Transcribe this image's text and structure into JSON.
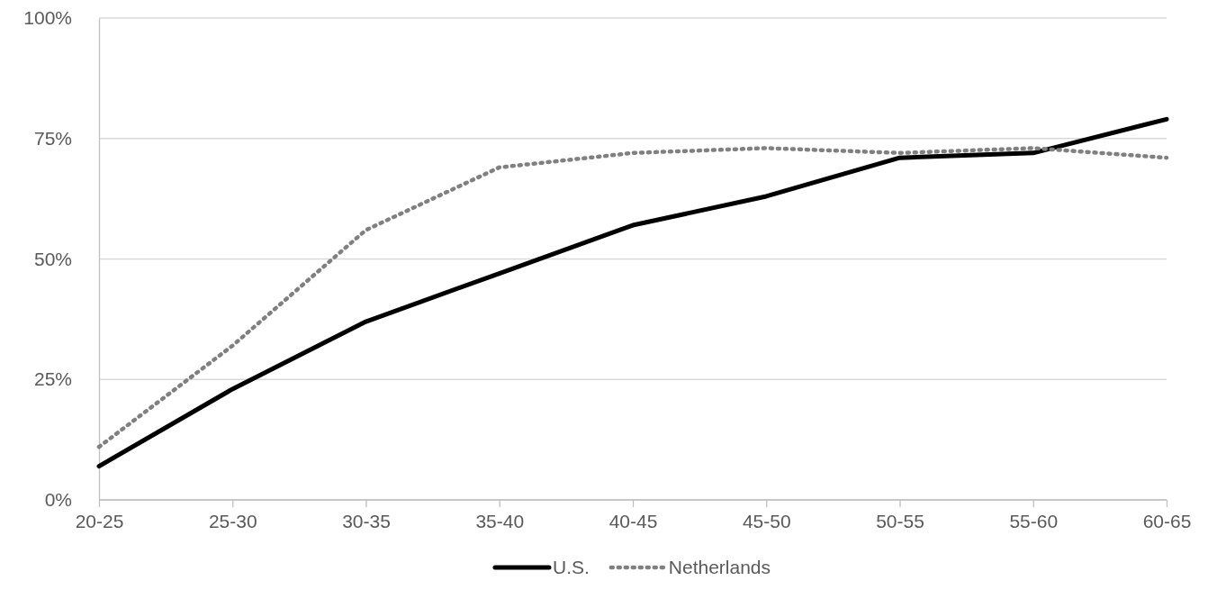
{
  "chart_data": {
    "type": "line",
    "categories": [
      "20-25",
      "25-30",
      "30-35",
      "35-40",
      "40-45",
      "45-50",
      "50-55",
      "55-60",
      "60-65"
    ],
    "series": [
      {
        "name": "U.S.",
        "color": "#000000",
        "line_style": "solid",
        "values": [
          7,
          23,
          37,
          47,
          57,
          63,
          71,
          72,
          79
        ]
      },
      {
        "name": "Netherlands",
        "color": "#808080",
        "line_style": "dotted",
        "values": [
          11,
          32,
          56,
          69,
          72,
          73,
          72,
          73,
          71
        ]
      }
    ],
    "ylim": [
      0,
      100
    ],
    "yticks": [
      {
        "value": 0,
        "label": "0%"
      },
      {
        "value": 25,
        "label": "25%"
      },
      {
        "value": 50,
        "label": "50%"
      },
      {
        "value": 75,
        "label": "75%"
      },
      {
        "value": 100,
        "label": "100%"
      }
    ],
    "grid": "y",
    "legend": "bottom",
    "marker": "none"
  }
}
